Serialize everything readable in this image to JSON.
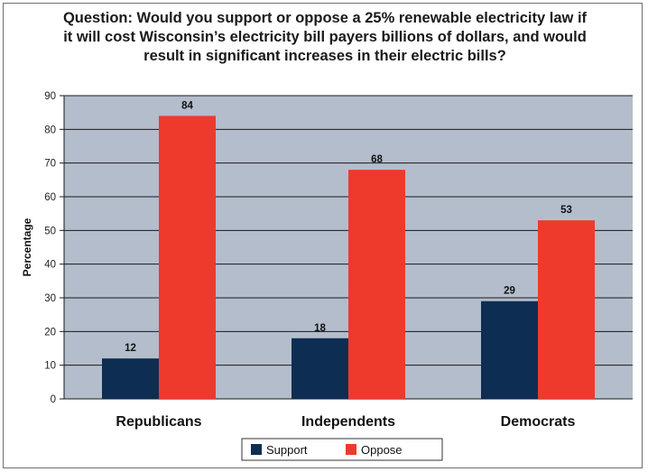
{
  "chart_data": {
    "type": "bar",
    "title_lines": [
      "Question: Would you support or oppose a 25% renewable electricity law if",
      "it will cost Wisconsin’s electricity bill payers billions of dollars, and would",
      "result in significant increases in their electric bills?"
    ],
    "ylabel": "Percentage",
    "xlabel": "",
    "categories": [
      "Republicans",
      "Independents",
      "Democrats"
    ],
    "series": [
      {
        "name": "Support",
        "values": [
          12,
          18,
          29
        ],
        "color": "#0d2d52"
      },
      {
        "name": "Oppose",
        "values": [
          84,
          68,
          53
        ],
        "color": "#ee3a2c"
      }
    ],
    "ylim": [
      0,
      90
    ],
    "yticks": [
      0,
      10,
      20,
      30,
      40,
      50,
      60,
      70,
      80,
      90
    ],
    "grid": true,
    "plot_background": "#b4bdcc",
    "legend_position": "bottom-center"
  }
}
